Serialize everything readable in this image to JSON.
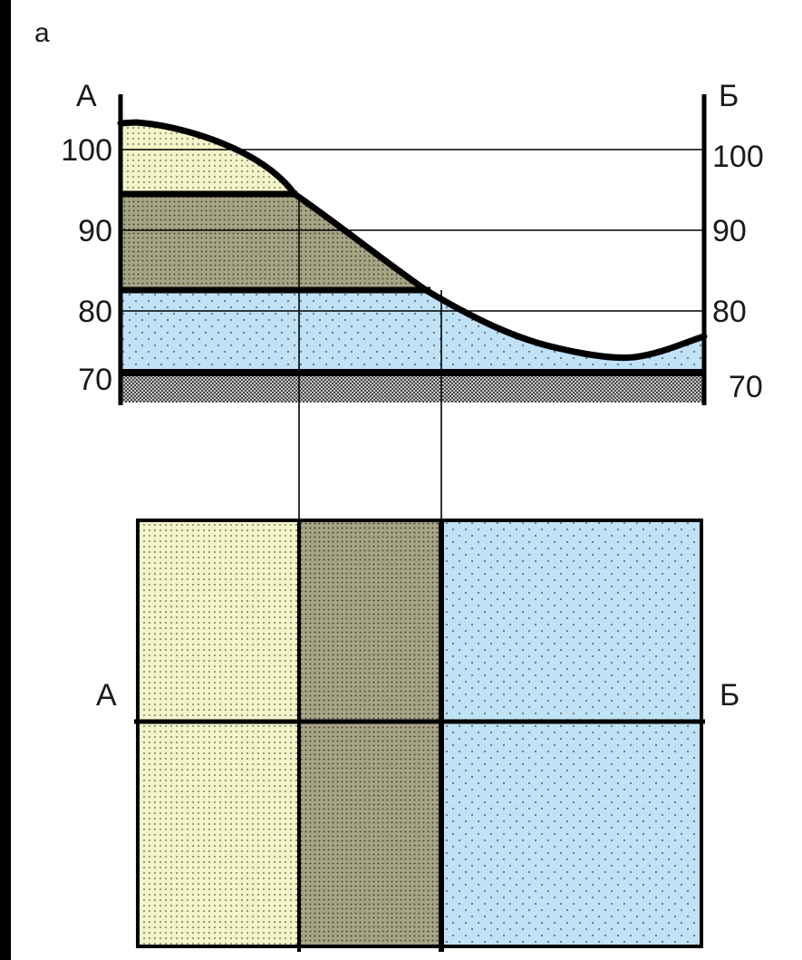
{
  "figure_label": "а",
  "section": {
    "left_end": "А",
    "right_end": "Б",
    "elevation_ticks": [
      "100",
      "90",
      "80",
      "70"
    ],
    "elevation_values": [
      100,
      90,
      80,
      70
    ]
  },
  "plan": {
    "left_end": "А",
    "right_end": "Б"
  },
  "colors": {
    "layer_light": "#f2f5c8",
    "layer_dark": "#a7a484",
    "layer_blue": "#bfe2f6",
    "base": "#c9c9c9",
    "line": "#000000"
  }
}
